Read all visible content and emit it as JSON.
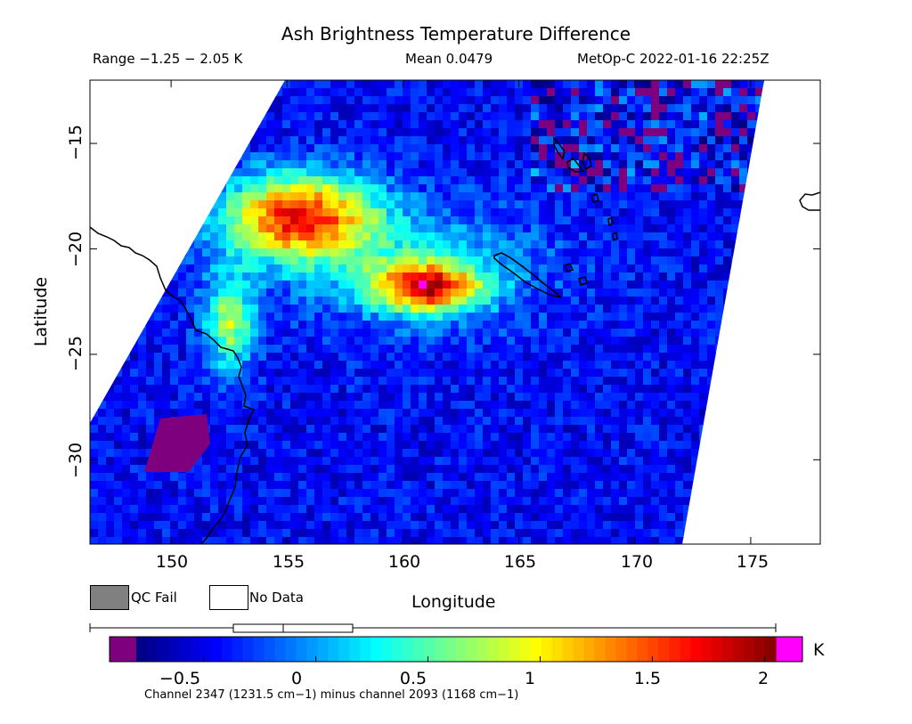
{
  "header": {
    "title": "Ash Brightness Temperature Difference",
    "range": "Range −1.25 − 2.05 K",
    "mean": "Mean 0.0479",
    "satellite": "MetOp-C 2022-01-16 22:25Z"
  },
  "map": {
    "x_label": "Longitude",
    "y_label": "Latitude",
    "x_ticks": [
      "150",
      "155",
      "160",
      "165",
      "170",
      "175"
    ],
    "y_ticks": [
      "−15",
      "−20",
      "−25",
      "−30"
    ],
    "lon_range": [
      146.5,
      178
    ],
    "lat_range": [
      -34,
      -12
    ],
    "features": [
      "Australia east coast",
      "New Caledonia",
      "Vanuatu"
    ]
  },
  "legend": {
    "qc_fail": "QC Fail",
    "no_data": "No Data",
    "qc_fail_color": "#808080",
    "no_data_color": "#ffffff"
  },
  "colorbar": {
    "ticks": [
      "−0.5",
      "0",
      "0.5",
      "1",
      "1.5",
      "2"
    ],
    "unit": "K",
    "value_range": [
      -0.8,
      2.05
    ],
    "under_color": "#7f007f",
    "over_color": "#ff00ff",
    "box_whisker": {
      "min": -1.25,
      "q1": -0.27,
      "median": -0.05,
      "q3": 0.24,
      "max": 2.05
    }
  },
  "footer": "Channel 2347 (1231.5 cm−1) minus channel 2093 (1168 cm−1)",
  "chart_data": {
    "type": "heatmap",
    "title": "Ash Brightness Temperature Difference",
    "xlabel": "Longitude",
    "ylabel": "Latitude",
    "xlim": [
      146.5,
      178
    ],
    "ylim": [
      -34,
      -12
    ],
    "colorbar_label": "K",
    "value_range": [
      -1.25,
      2.05
    ],
    "mean": 0.0479,
    "hotspots": [
      {
        "name": "plume-west",
        "lon": 155.5,
        "lat": -18.5,
        "value": 1.6
      },
      {
        "name": "plume-south",
        "lon": 161.0,
        "lat": -21.8,
        "value": 1.8
      },
      {
        "name": "coast-band",
        "lon": 152.5,
        "lat": -23.5,
        "value": 1.2
      }
    ]
  }
}
